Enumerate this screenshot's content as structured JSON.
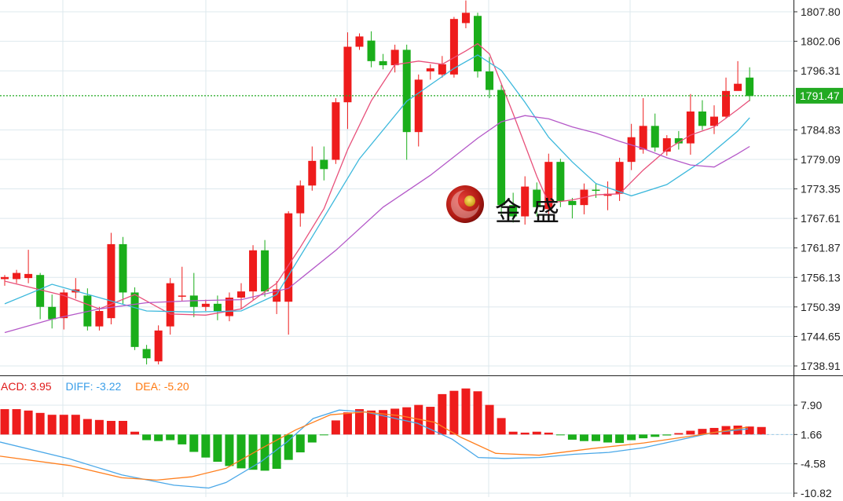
{
  "chart_data": [
    {
      "type": "candlestick",
      "title": "",
      "ylim": [
        1736.0,
        1811.0
      ],
      "y_ticks": [
        "1807.80",
        "1802.06",
        "1796.31",
        "1791.47",
        "1784.83",
        "1779.09",
        "1773.35",
        "1767.61",
        "1761.87",
        "1756.13",
        "1750.39",
        "1744.65",
        "1738.91"
      ],
      "current_price": "1791.47",
      "grid": true,
      "colors": {
        "up": "#ee1c1c",
        "down": "#1aae1a",
        "ma5": "#e8507a",
        "ma10": "#3cb8dc",
        "ma20": "#b458c8",
        "price_line": "#22aa22"
      },
      "candles": [
        [
          1755.8,
          1756.2,
          1754.5,
          1756.6
        ],
        [
          1755.8,
          1757.0,
          1755.0,
          1757.6
        ],
        [
          1756.0,
          1756.8,
          1755.0,
          1761.5
        ],
        [
          1756.6,
          1750.4,
          1748.0,
          1757.0
        ],
        [
          1750.4,
          1748.0,
          1746.2,
          1752.8
        ],
        [
          1748.2,
          1753.2,
          1746.0,
          1753.8
        ],
        [
          1753.2,
          1753.8,
          1752.0,
          1756.0
        ],
        [
          1752.6,
          1746.6,
          1745.8,
          1754.0
        ],
        [
          1746.6,
          1749.6,
          1745.8,
          1750.4
        ],
        [
          1748.2,
          1762.6,
          1747.0,
          1764.8
        ],
        [
          1762.6,
          1753.2,
          1751.0,
          1764.0
        ],
        [
          1753.2,
          1742.6,
          1742.0,
          1754.2
        ],
        [
          1742.2,
          1740.4,
          1739.2,
          1743.0
        ],
        [
          1739.8,
          1745.8,
          1739.2,
          1746.8
        ],
        [
          1746.6,
          1755.0,
          1745.0,
          1756.0
        ],
        [
          1752.6,
          1752.6,
          1751.6,
          1758.2
        ],
        [
          1752.6,
          1750.4,
          1748.4,
          1757.0
        ],
        [
          1750.4,
          1751.0,
          1749.6,
          1751.8
        ],
        [
          1751.0,
          1749.6,
          1747.8,
          1752.6
        ],
        [
          1748.6,
          1752.2,
          1747.6,
          1753.2
        ],
        [
          1752.2,
          1753.4,
          1750.0,
          1755.0
        ],
        [
          1753.4,
          1761.4,
          1751.8,
          1762.4
        ],
        [
          1761.4,
          1753.4,
          1752.4,
          1763.4
        ],
        [
          1751.4,
          1753.8,
          1749.0,
          1755.4
        ],
        [
          1751.4,
          1768.6,
          1745.0,
          1769.0
        ],
        [
          1768.6,
          1774.0,
          1766.0,
          1775.0
        ],
        [
          1774.0,
          1778.8,
          1773.0,
          1781.6
        ],
        [
          1779.0,
          1777.2,
          1775.0,
          1781.6
        ],
        [
          1779.0,
          1790.2,
          1778.2,
          1791.0
        ],
        [
          1790.2,
          1801.0,
          1785.0,
          1803.8
        ],
        [
          1801.0,
          1803.0,
          1800.4,
          1803.6
        ],
        [
          1802.2,
          1798.2,
          1797.0,
          1804.0
        ],
        [
          1798.2,
          1797.4,
          1796.6,
          1799.6
        ],
        [
          1797.4,
          1800.4,
          1796.0,
          1801.4
        ],
        [
          1800.4,
          1784.4,
          1779.0,
          1801.4
        ],
        [
          1784.4,
          1794.6,
          1781.6,
          1795.6
        ],
        [
          1796.2,
          1796.8,
          1794.6,
          1797.6
        ],
        [
          1795.6,
          1797.6,
          1795.0,
          1799.2
        ],
        [
          1795.6,
          1806.4,
          1795.0,
          1806.8
        ],
        [
          1805.6,
          1807.6,
          1804.6,
          1810.0
        ],
        [
          1807.0,
          1796.2,
          1795.0,
          1807.6
        ],
        [
          1796.2,
          1792.6,
          1791.0,
          1799.0
        ],
        [
          1792.6,
          1770.2,
          1768.2,
          1793.6
        ],
        [
          1770.2,
          1768.0,
          1766.8,
          1772.6
        ],
        [
          1768.0,
          1773.8,
          1766.4,
          1775.8
        ],
        [
          1773.2,
          1769.8,
          1768.0,
          1774.6
        ],
        [
          1769.4,
          1778.6,
          1768.0,
          1780.2
        ],
        [
          1778.6,
          1771.0,
          1769.8,
          1779.2
        ],
        [
          1771.0,
          1770.2,
          1767.6,
          1771.6
        ],
        [
          1770.2,
          1773.2,
          1768.4,
          1774.4
        ],
        [
          1773.2,
          1773.0,
          1771.6,
          1774.4
        ],
        [
          1772.0,
          1772.4,
          1769.2,
          1774.8
        ],
        [
          1772.4,
          1778.6,
          1771.0,
          1779.4
        ],
        [
          1778.6,
          1783.4,
          1777.0,
          1786.0
        ],
        [
          1781.0,
          1785.6,
          1780.2,
          1791.0
        ],
        [
          1785.6,
          1781.4,
          1780.6,
          1788.0
        ],
        [
          1780.6,
          1783.2,
          1779.8,
          1783.8
        ],
        [
          1783.2,
          1782.2,
          1781.0,
          1784.6
        ],
        [
          1782.2,
          1788.4,
          1780.0,
          1791.8
        ],
        [
          1788.4,
          1785.6,
          1784.8,
          1790.6
        ],
        [
          1785.6,
          1787.4,
          1784.0,
          1789.6
        ],
        [
          1787.4,
          1792.4,
          1787.0,
          1795.0
        ],
        [
          1792.4,
          1793.8,
          1792.6,
          1798.2
        ],
        [
          1795.0,
          1791.4,
          1790.4,
          1797.0
        ]
      ],
      "ma_lines": {
        "ma5": [
          [
            0,
            1755.4
          ],
          [
            5,
            1752.6
          ],
          [
            8,
            1750.0
          ],
          [
            11,
            1752.8
          ],
          [
            14,
            1749.0
          ],
          [
            17,
            1748.8
          ],
          [
            20,
            1750.0
          ],
          [
            23,
            1755.0
          ],
          [
            25,
            1762.0
          ],
          [
            27,
            1769.5
          ],
          [
            29,
            1781.0
          ],
          [
            31,
            1790.5
          ],
          [
            33,
            1797.5
          ],
          [
            35,
            1798.2
          ],
          [
            37,
            1797.6
          ],
          [
            39,
            1800.2
          ],
          [
            40,
            1801.6
          ],
          [
            41,
            1799.6
          ],
          [
            43,
            1788.0
          ],
          [
            45,
            1775.8
          ],
          [
            46,
            1770.6
          ],
          [
            48,
            1771.2
          ],
          [
            50,
            1772.2
          ],
          [
            52,
            1772.4
          ],
          [
            54,
            1777.0
          ],
          [
            56,
            1781.0
          ],
          [
            58,
            1783.8
          ],
          [
            60,
            1785.4
          ],
          [
            62,
            1788.8
          ],
          [
            63,
            1790.6
          ]
        ],
        "ma10": [
          [
            0,
            1751.0
          ],
          [
            4,
            1754.8
          ],
          [
            8,
            1752.2
          ],
          [
            12,
            1749.6
          ],
          [
            16,
            1749.4
          ],
          [
            20,
            1749.6
          ],
          [
            23,
            1752.8
          ],
          [
            26,
            1764.0
          ],
          [
            30,
            1779.2
          ],
          [
            34,
            1790.4
          ],
          [
            38,
            1796.8
          ],
          [
            40,
            1799.4
          ],
          [
            42,
            1796.4
          ],
          [
            44,
            1790.2
          ],
          [
            46,
            1783.4
          ],
          [
            48,
            1778.6
          ],
          [
            50,
            1774.4
          ],
          [
            53,
            1772.0
          ],
          [
            56,
            1774.2
          ],
          [
            59,
            1778.8
          ],
          [
            62,
            1784.6
          ],
          [
            63,
            1787.2
          ]
        ],
        "ma20": [
          [
            0,
            1745.4
          ],
          [
            4,
            1748.0
          ],
          [
            8,
            1750.0
          ],
          [
            12,
            1751.2
          ],
          [
            16,
            1751.6
          ],
          [
            20,
            1751.8
          ],
          [
            24,
            1754.0
          ],
          [
            28,
            1761.4
          ],
          [
            32,
            1769.8
          ],
          [
            36,
            1776.0
          ],
          [
            40,
            1783.2
          ],
          [
            42,
            1786.4
          ],
          [
            44,
            1787.6
          ],
          [
            46,
            1787.0
          ],
          [
            48,
            1785.4
          ],
          [
            50,
            1784.2
          ],
          [
            52,
            1782.6
          ],
          [
            54,
            1781.2
          ],
          [
            56,
            1779.4
          ],
          [
            58,
            1778.0
          ],
          [
            60,
            1777.6
          ],
          [
            62,
            1780.2
          ],
          [
            63,
            1781.6
          ]
        ]
      }
    },
    {
      "type": "bar",
      "title": "MACD",
      "ylim": [
        -11.5,
        10.5
      ],
      "y_ticks": [
        "7.90",
        "1.66",
        "-4.58",
        "-10.82"
      ],
      "zero_line": 1.66,
      "colors": {
        "positive": "#ee1c1c",
        "negative": "#1aae1a",
        "diff": "#4aa8e8",
        "dea": "#ff7f1e"
      },
      "labels": {
        "macd": "ACD: 3.95",
        "diff": "DIFF: -3.22",
        "dea": "DEA: -5.20"
      },
      "values": [
        5.4,
        5.4,
        5.1,
        4.6,
        4.2,
        4.2,
        4.2,
        3.3,
        3.1,
        2.9,
        2.9,
        0.6,
        -1.2,
        -1.4,
        -1.2,
        -2.1,
        -3.7,
        -4.9,
        -5.8,
        -6.7,
        -7.2,
        -7.5,
        -7.7,
        -7.3,
        -5.4,
        -3.8,
        -1.7,
        -0.1,
        3.0,
        4.7,
        5.4,
        5.1,
        5.2,
        5.5,
        5.8,
        6.3,
        5.9,
        8.6,
        9.3,
        9.8,
        9.2,
        6.3,
        3.5,
        0.6,
        0.4,
        0.6,
        0.4,
        -0.1,
        -1.1,
        -1.4,
        -1.4,
        -1.7,
        -1.8,
        -1.2,
        -0.8,
        -0.5,
        -0.2,
        0.3,
        0.8,
        1.2,
        1.4,
        1.8,
        1.9,
        1.7,
        1.6
      ],
      "diff": [
        [
          0,
          -1.6
        ],
        [
          8,
          -5.2
        ],
        [
          14,
          -8.6
        ],
        [
          20,
          -10.8
        ],
        [
          24,
          -11.4
        ],
        [
          26,
          -10.2
        ],
        [
          30,
          -5.8
        ],
        [
          33,
          -1.6
        ],
        [
          36,
          3.4
        ],
        [
          39,
          5.2
        ],
        [
          42,
          4.8
        ],
        [
          45,
          3.6
        ],
        [
          48,
          2.4
        ],
        [
          52,
          -1.0
        ],
        [
          55,
          -4.9
        ],
        [
          58,
          -5.1
        ],
        [
          62,
          -4.9
        ],
        [
          66,
          -4.2
        ],
        [
          70,
          -3.8
        ],
        [
          74,
          -2.8
        ],
        [
          78,
          -1.2
        ],
        [
          82,
          0.4
        ],
        [
          86,
          1.2
        ]
      ],
      "dea": [
        [
          0,
          -4.6
        ],
        [
          8,
          -6.6
        ],
        [
          14,
          -9.2
        ],
        [
          18,
          -9.7
        ],
        [
          22,
          -9.0
        ],
        [
          26,
          -7.2
        ],
        [
          30,
          -3.0
        ],
        [
          34,
          1.0
        ],
        [
          38,
          4.2
        ],
        [
          42,
          4.8
        ],
        [
          46,
          4.0
        ],
        [
          50,
          2.6
        ],
        [
          53,
          -0.6
        ],
        [
          57,
          -4.0
        ],
        [
          62,
          -4.4
        ],
        [
          68,
          -3.0
        ],
        [
          74,
          -1.8
        ],
        [
          80,
          -0.2
        ],
        [
          86,
          1.6
        ]
      ],
      "threshold_line": 1.66
    }
  ]
}
